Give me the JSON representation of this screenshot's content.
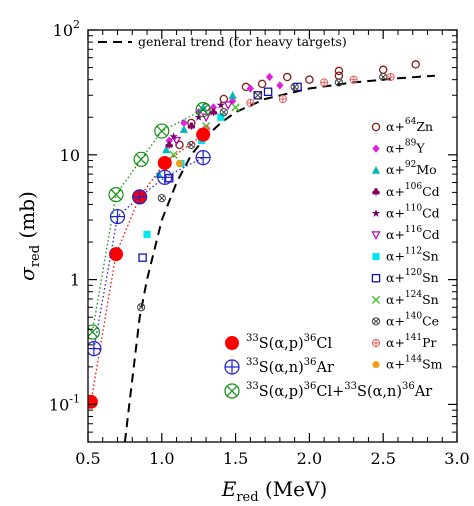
{
  "chart_data": {
    "type": "scatter",
    "xlabel": {
      "main": "E",
      "sub": "red",
      "unit": "(MeV)"
    },
    "ylabel": {
      "main": "σ",
      "sub": "red",
      "unit": "(mb)"
    },
    "xlim": [
      0.5,
      3.0
    ],
    "ylim": [
      0.05,
      100
    ],
    "yscale": "log",
    "x_ticks": [
      "0.5",
      "1.0",
      "1.5",
      "2.0",
      "2.5",
      "3.0"
    ],
    "y_ticks": [
      {
        "value": 0.1,
        "base": "10",
        "exp": "-1"
      },
      {
        "value": 1,
        "label": "1"
      },
      {
        "value": 10,
        "label": "10"
      },
      {
        "value": 100,
        "base": "10",
        "exp": "2"
      }
    ],
    "trend": {
      "label": "general trend (for heavy targets)",
      "points": [
        [
          0.75,
          0.05
        ],
        [
          0.78,
          0.1
        ],
        [
          0.85,
          0.5
        ],
        [
          0.9,
          1.0
        ],
        [
          1.0,
          3.0
        ],
        [
          1.1,
          6.0
        ],
        [
          1.2,
          10
        ],
        [
          1.3,
          14
        ],
        [
          1.4,
          18
        ],
        [
          1.5,
          22
        ],
        [
          1.7,
          28
        ],
        [
          2.0,
          34
        ],
        [
          2.3,
          38
        ],
        [
          2.6,
          41
        ],
        [
          2.85,
          43
        ]
      ]
    },
    "series": [
      {
        "name": "α+⁶⁴Zn",
        "prefix": "α+",
        "mass": "64",
        "el": "Zn",
        "marker": "circle-open",
        "color": "#8b1a1a",
        "points": [
          [
            1.12,
            12
          ],
          [
            1.2,
            18
          ],
          [
            1.3,
            24
          ],
          [
            1.42,
            28
          ],
          [
            1.57,
            35
          ],
          [
            1.68,
            37
          ],
          [
            1.85,
            42
          ],
          [
            2.0,
            40
          ],
          [
            2.2,
            47
          ],
          [
            2.2,
            43
          ],
          [
            2.5,
            48
          ],
          [
            2.72,
            53
          ]
        ]
      },
      {
        "name": "α+⁸⁹Y",
        "prefix": "α+",
        "mass": "89",
        "el": "Y",
        "marker": "diamond",
        "color": "#e020e0",
        "points": [
          [
            1.05,
            13
          ],
          [
            1.15,
            18
          ],
          [
            1.25,
            22
          ],
          [
            1.35,
            24
          ],
          [
            1.48,
            27
          ],
          [
            1.6,
            34
          ],
          [
            1.73,
            42
          ],
          [
            1.8,
            36
          ]
        ]
      },
      {
        "name": "α+⁹²Mo",
        "prefix": "α+",
        "mass": "92",
        "el": "Mo",
        "marker": "triangle",
        "color": "#00b8b8",
        "points": [
          [
            0.98,
            7
          ],
          [
            1.03,
            11
          ],
          [
            1.15,
            16
          ],
          [
            1.28,
            24
          ],
          [
            1.48,
            30
          ]
        ]
      },
      {
        "name": "α+¹⁰⁶Cd",
        "prefix": "α+",
        "mass": "106",
        "el": "Cd",
        "marker": "club",
        "color": "#880066",
        "points": [
          [
            1.05,
            12
          ],
          [
            1.2,
            17
          ],
          [
            1.35,
            22
          ]
        ]
      },
      {
        "name": "α+¹¹⁰Cd",
        "prefix": "α+",
        "mass": "110",
        "el": "Cd",
        "marker": "star",
        "color": "#700070",
        "points": [
          [
            1.08,
            14
          ],
          [
            1.25,
            20
          ],
          [
            1.4,
            25
          ]
        ]
      },
      {
        "name": "α+¹¹⁶Cd",
        "prefix": "α+",
        "mass": "116",
        "el": "Cd",
        "marker": "triangle-down-open",
        "color": "#b000b0",
        "points": [
          [
            1.1,
            13
          ],
          [
            1.3,
            20
          ],
          [
            1.45,
            25
          ]
        ]
      },
      {
        "name": "α+¹¹²Sn",
        "prefix": "α+",
        "mass": "112",
        "el": "Sn",
        "marker": "square",
        "color": "#00e5ee",
        "points": [
          [
            0.9,
            2.3
          ],
          [
            1.13,
            8.5
          ],
          [
            1.27,
            13
          ],
          [
            1.4,
            20
          ]
        ]
      },
      {
        "name": "α+¹²⁰Sn",
        "prefix": "α+",
        "mass": "120",
        "el": "Sn",
        "marker": "square-open",
        "color": "#1414b4",
        "points": [
          [
            0.87,
            1.5
          ],
          [
            1.05,
            6.5
          ],
          [
            1.28,
            15
          ],
          [
            1.65,
            30
          ],
          [
            1.72,
            32
          ],
          [
            1.92,
            35
          ]
        ]
      },
      {
        "name": "α+¹²⁴Sn",
        "prefix": "α+",
        "mass": "124",
        "el": "Sn",
        "marker": "x",
        "color": "#40c020",
        "points": [
          [
            1.08,
            10
          ],
          [
            1.3,
            17
          ],
          [
            1.5,
            24
          ]
        ]
      },
      {
        "name": "α+¹⁴⁰Ce",
        "prefix": "α+",
        "mass": "140",
        "el": "Ce",
        "marker": "circle-x",
        "color": "#404040",
        "points": [
          [
            0.86,
            0.6
          ],
          [
            1.0,
            4.5
          ],
          [
            1.2,
            12
          ],
          [
            1.42,
            22
          ],
          [
            1.65,
            30
          ],
          [
            1.9,
            35
          ],
          [
            2.2,
            38
          ],
          [
            2.5,
            42
          ]
        ]
      },
      {
        "name": "α+¹⁴¹Pr",
        "prefix": "α+",
        "mass": "141",
        "el": "Pr",
        "marker": "circle-plus",
        "color": "#e86060",
        "points": [
          [
            1.3,
            16
          ],
          [
            1.6,
            26
          ],
          [
            1.82,
            28
          ],
          [
            2.1,
            38
          ],
          [
            2.3,
            40
          ],
          [
            2.55,
            42
          ]
        ]
      },
      {
        "name": "α+¹⁴⁴Sm",
        "prefix": "α+",
        "mass": "144",
        "el": "Sm",
        "marker": "circle",
        "color": "#f0a020",
        "points": [
          [
            1.12,
            8.5
          ],
          [
            1.3,
            14
          ]
        ]
      },
      {
        "name": "³³S(α,p)³⁶Cl",
        "marker": "circle-big",
        "color": "#ff0000",
        "line": "dotted",
        "points": [
          [
            0.52,
            0.105
          ],
          [
            0.69,
            1.6
          ],
          [
            0.85,
            4.6
          ],
          [
            1.02,
            8.6
          ],
          [
            1.28,
            14.5
          ]
        ]
      },
      {
        "name": "³³S(α,n)³⁶Ar",
        "marker": "circle-plus-big",
        "color": "#2020d0",
        "line": "dotted",
        "points": [
          [
            0.54,
            0.28
          ],
          [
            0.7,
            3.2
          ],
          [
            0.85,
            4.6
          ],
          [
            1.02,
            6.6
          ],
          [
            1.28,
            9.5
          ]
        ]
      },
      {
        "name": "³³S(α,p)³⁶Cl+³³S(α,n)³⁶Ar",
        "marker": "circle-x-big",
        "color": "#109010",
        "line": "dotted",
        "points": [
          [
            0.53,
            0.38
          ],
          [
            0.69,
            4.8
          ],
          [
            0.86,
            9.2
          ],
          [
            1.0,
            15.5
          ],
          [
            1.28,
            23
          ]
        ]
      }
    ],
    "legend_big": [
      {
        "a_mass": "33",
        "a_el": "S",
        "reac": "(α,p)",
        "b_mass": "36",
        "b_el": "Cl",
        "marker": "circle-big",
        "color": "#ff0000"
      },
      {
        "a_mass": "33",
        "a_el": "S",
        "reac": "(α,n)",
        "b_mass": "36",
        "b_el": "Ar",
        "marker": "circle-plus-big",
        "color": "#2020d0"
      },
      {
        "a_mass": "33",
        "a_el": "S",
        "reac": "(α,p)",
        "b_mass": "36",
        "b_el": "Cl",
        "plus": "+",
        "c_mass": "33",
        "c_el": "S",
        "c_reac": "(α,n)",
        "d_mass": "36",
        "d_el": "Ar",
        "marker": "circle-x-big",
        "color": "#109010"
      }
    ]
  }
}
